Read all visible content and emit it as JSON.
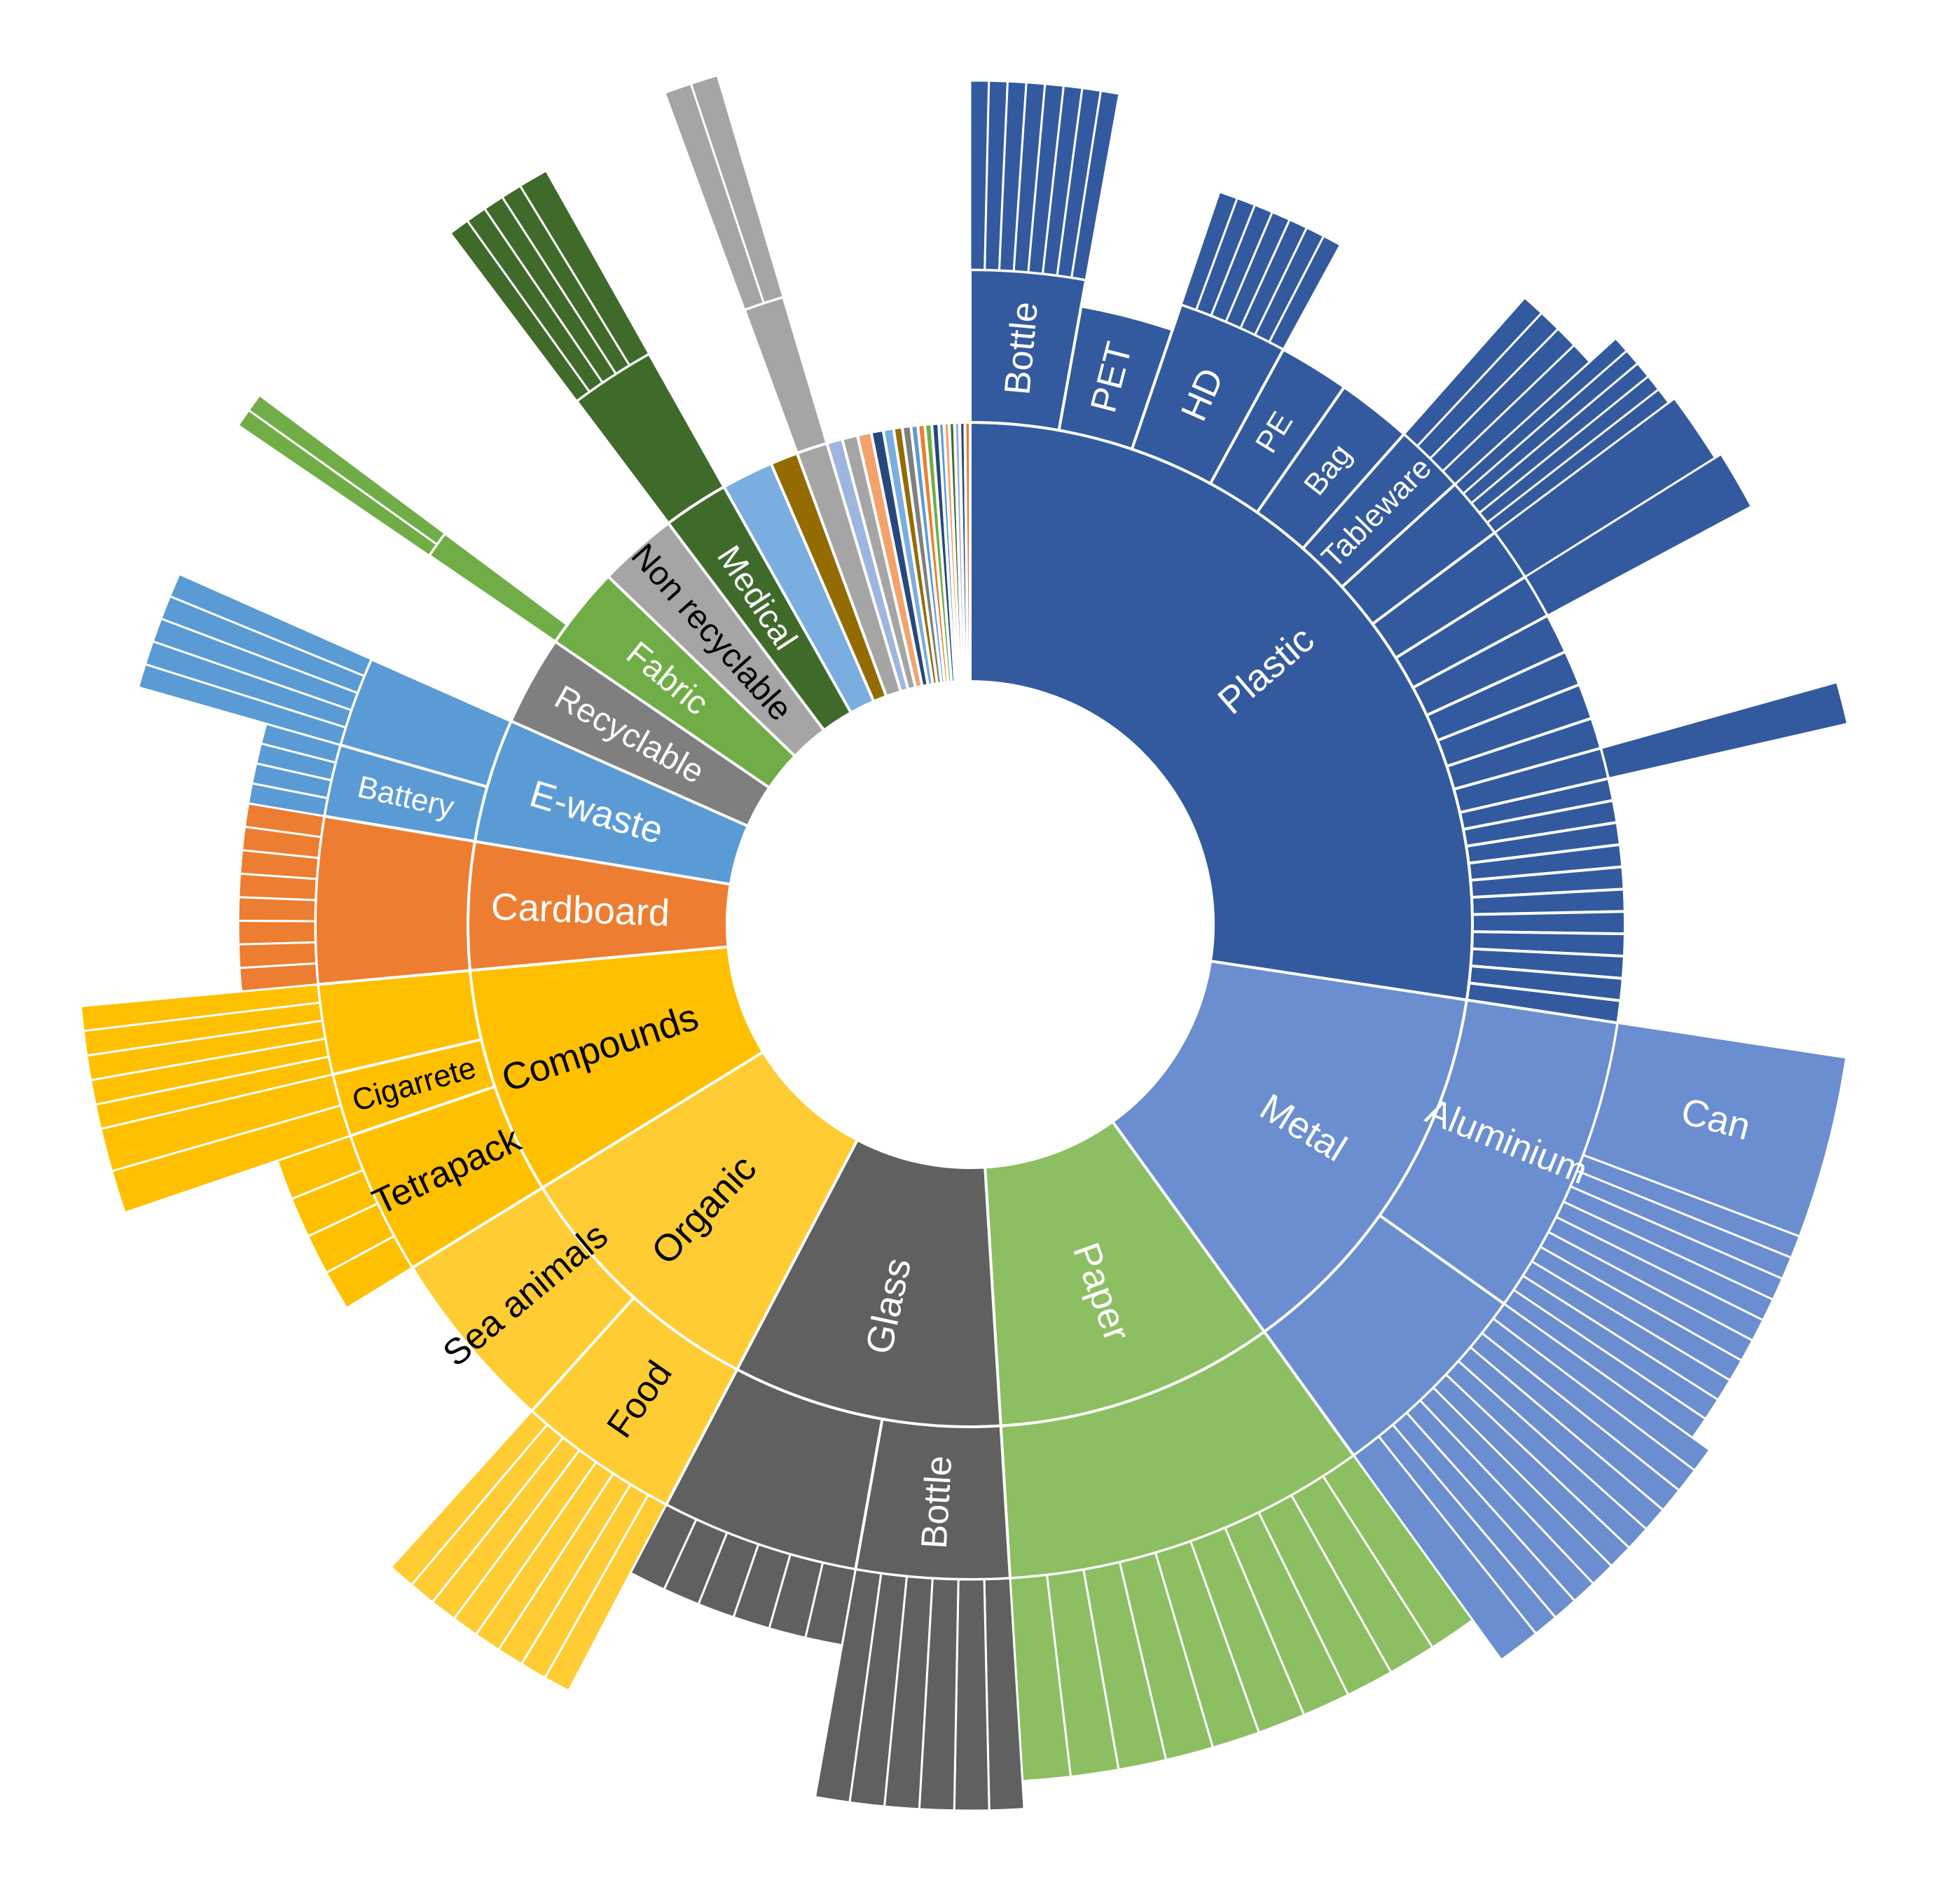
{
  "chart_data": {
    "type": "sunburst",
    "title": "",
    "colors": {
      "plastic": "#335a9e",
      "metal": "#6a8ecf",
      "paper": "#8cbf62",
      "glass": "#606060",
      "organic": "#ffcc33",
      "compounds": "#ffc000",
      "cardboard": "#ed7d31",
      "ewaste": "#5b9bd5",
      "recyclable": "#7f7f7f",
      "fabric": "#70ad47",
      "nonrecyclable": "#a5a5a5",
      "medical": "#3f6a2a",
      "light_blue": "#7aade0",
      "brown": "#946b00",
      "grey_blue": "#9eb6df",
      "peach": "#f4a26b",
      "navy": "#27487c"
    },
    "categories": [
      {
        "name": "Plastic",
        "value": 24.7,
        "color": "plastic",
        "label_color": "#ffffff",
        "children": [
          {
            "name": "Bottle",
            "value": 2.6,
            "label_color": "#ffffff",
            "leaves": [
              1.2,
              1.2,
              1.2,
              1.2,
              1.2,
              1.2,
              1.2,
              1.2
            ],
            "leaf_len": 270
          },
          {
            "name": "PET",
            "value": 2.2,
            "label_color": "#ffffff",
            "height": 180,
            "leaves": [],
            "leaf_len": 0
          },
          {
            "name": "HD",
            "value": 2.5,
            "label_color": "#ffffff",
            "stack_on": "PET",
            "leaves": [
              1.2,
              1.2,
              1.2,
              1.2,
              1.2,
              1.2,
              1.2
            ],
            "leaf_len": 170
          },
          {
            "name": "PE",
            "value": 1.6,
            "label_color": "#ffffff",
            "leaves": [],
            "leaf_len": 0
          },
          {
            "name": "Bag",
            "value": 1.7,
            "label_color": "#ffffff",
            "leaves": [],
            "leaf_len": 0
          },
          {
            "name": "Tableware",
            "value": 1.6,
            "label_color": "#ffffff",
            "leaves": [
              0.4,
              0.4,
              0.4,
              0.4
            ],
            "leaf_len": 260
          },
          {
            "name": "",
            "value": 1.4,
            "leaves": [
              0.4,
              0.4,
              0.4,
              0.4,
              0.4
            ],
            "leaf_len": 310
          },
          {
            "name": "",
            "value": 1.2,
            "leaves": [
              0.6
            ],
            "leaf_len": 320
          },
          {
            "name": "",
            "value": 1.0,
            "leaves": [
              0.6
            ],
            "leaf_len": 330
          },
          {
            "name": "",
            "value": 0.9,
            "leaves": [],
            "leaf_len": 0
          },
          {
            "name": "",
            "value": 0.8,
            "leaves": [],
            "leaf_len": 0
          },
          {
            "name": "",
            "value": 0.8,
            "leaves": [],
            "leaf_len": 0
          },
          {
            "name": "",
            "value": 0.7,
            "leaves": [],
            "leaf_len": 0
          },
          {
            "name": "",
            "value": 0.7,
            "leaves": [
              0.3
            ],
            "leaf_len": 350
          },
          {
            "name": "",
            "value": 0.5,
            "leaves": [],
            "leaf_len": 0
          },
          {
            "name": "",
            "value": 0.5,
            "leaves": [],
            "leaf_len": 0
          },
          {
            "name": "",
            "value": 0.5,
            "leaves": [],
            "leaf_len": 0
          },
          {
            "name": "",
            "value": 0.5,
            "leaves": [],
            "leaf_len": 0
          },
          {
            "name": "",
            "value": 0.5,
            "leaves": [],
            "leaf_len": 0
          },
          {
            "name": "",
            "value": 0.5,
            "leaves": [],
            "leaf_len": 0
          },
          {
            "name": "",
            "value": 0.5,
            "leaves": [],
            "leaf_len": 0
          },
          {
            "name": "",
            "value": 0.5,
            "leaves": [],
            "leaf_len": 0
          },
          {
            "name": "",
            "value": 0.5,
            "leaves": [],
            "leaf_len": 0
          },
          {
            "name": "",
            "value": 0.5,
            "leaves": [],
            "leaf_len": 0
          },
          {
            "name": "",
            "value": 0.5,
            "leaves": [],
            "leaf_len": 0
          }
        ]
      },
      {
        "name": "Metal",
        "value": 11.4,
        "color": "metal",
        "label_color": "#ffffff",
        "children": [
          {
            "name": "Aluminium",
            "value": 6.7,
            "label_color": "#ffffff",
            "leaves": [
              3.4,
              0.42,
              0.42,
              0.42,
              0.42,
              0.42,
              0.42,
              0.42,
              0.42,
              0.42,
              0.42
            ],
            "leaf_len": 330,
            "leaf_names": [
              "Can"
            ]
          },
          {
            "name": "",
            "value": 4.7,
            "leaves": [
              0.35,
              0.35,
              0.35,
              0.35,
              0.35,
              0.35,
              0.35,
              0.35,
              0.35,
              0.35,
              0.6
            ],
            "leaf_len": 360
          }
        ]
      },
      {
        "name": "Paper",
        "value": 8.1,
        "color": "paper",
        "label_color": "#ffffff",
        "children": [
          {
            "name": "",
            "value": 8.1,
            "leaves": [
              0.7,
              0.7,
              0.7,
              0.7,
              0.7,
              0.7,
              0.7,
              0.7,
              0.7,
              0.7
            ],
            "leaf_len": 290
          }
        ]
      },
      {
        "name": "Glass",
        "value": 7.8,
        "color": "glass",
        "label_color": "#ffffff",
        "children": [
          {
            "name": "Bottle",
            "value": 3.4,
            "label_color": "#ffffff",
            "leaves": [
              0.5,
              0.5,
              0.5,
              0.5,
              0.5,
              0.5
            ],
            "leaf_len": 330
          },
          {
            "name": "",
            "value": 4.4,
            "leaves": [
              0.6,
              0.6,
              0.6,
              0.6,
              0.6,
              0.6
            ],
            "leaf_len": 0
          }
        ]
      },
      {
        "name": "Organic",
        "value": 7.7,
        "color": "organic",
        "label_color": "#000000",
        "children": [
          {
            "name": "Food",
            "value": 3.6,
            "label_color": "#000000",
            "leaves": [
              0.45,
              0.45,
              0.45,
              0.45,
              0.45,
              0.45,
              0.45,
              0.45
            ],
            "leaf_len": 300
          },
          {
            "name": "Sea animals",
            "value": 4.1,
            "label_color": "#000000",
            "leaves": [],
            "leaf_len": 0
          }
        ]
      },
      {
        "name": "Compounds",
        "value": 6.6,
        "color": "compounds",
        "label_color": "#000000",
        "children": [
          {
            "name": "Tetrapack",
            "value": 3.2,
            "label_color": "#000000",
            "leaves": [
              0.35,
              0.35,
              0.35,
              0.35
            ],
            "leaf_len": 0
          },
          {
            "name": "Cigarrete",
            "value": 1.4,
            "label_color": "#000000",
            "leaves": [
              0.5,
              0.5
            ],
            "leaf_len": 340
          },
          {
            "name": "",
            "value": 2.0,
            "leaves": [
              0.4,
              0.4,
              0.4,
              0.4,
              0.4
            ],
            "leaf_len": 340
          }
        ]
      },
      {
        "name": "Cardboard",
        "value": 3.7,
        "color": "cardboard",
        "label_color": "#ffffff",
        "children": [
          {
            "name": "",
            "value": 3.7,
            "leaves": [
              0.45,
              0.45,
              0.45,
              0.45,
              0.45,
              0.45,
              0.45,
              0.45
            ],
            "leaf_len": 0
          }
        ]
      },
      {
        "name": "E-waste",
        "value": 3.6,
        "color": "ewaste",
        "label_color": "#ffffff",
        "children": [
          {
            "name": "Battery",
            "value": 1.6,
            "label_color": "#ffffff",
            "leaves": [
              0.4,
              0.4,
              0.4,
              0.4
            ],
            "leaf_len": 0
          },
          {
            "name": "",
            "value": 2.0,
            "leaves": [
              0.4,
              0.4,
              0.4,
              0.4,
              0.4
            ],
            "leaf_len": 300
          }
        ]
      },
      {
        "name": "Recyclable",
        "value": 2.6,
        "color": "recyclable",
        "label_color": "#ffffff",
        "children": []
      },
      {
        "name": "Fabric",
        "value": 2.4,
        "color": "fabric",
        "label_color": "#ffffff",
        "children": [
          {
            "name": "",
            "value": 0.6,
            "leaves": [
              0.2,
              0.2
            ],
            "leaf_len": 330
          }
        ]
      },
      {
        "name": "Non recyclable",
        "value": 2.3,
        "color": "nonrecyclable",
        "label_color": "#000000",
        "children": []
      },
      {
        "name": "Medical",
        "value": 1.9,
        "color": "medical",
        "label_color": "#ffffff",
        "children": [
          {
            "name": "",
            "value": 1.9,
            "leaves": [
              0.35,
              0.35,
              0.35,
              0.35,
              0.5
            ],
            "leaf_len": 300
          }
        ]
      },
      {
        "name": "",
        "value": 1.5,
        "color": "light_blue",
        "children": []
      },
      {
        "name": "",
        "value": 0.8,
        "color": "brown",
        "children": []
      },
      {
        "name": "",
        "value": 0.9,
        "color": "nonrecyclable",
        "children": [
          {
            "name": "",
            "value": 0.9,
            "leaves": [
              0.3,
              0.3
            ],
            "leaf_len": 330
          }
        ]
      },
      {
        "name": "",
        "value": 0.45,
        "color": "grey_blue",
        "children": []
      },
      {
        "name": "",
        "value": 0.45,
        "color": "nonrecyclable",
        "children": []
      },
      {
        "name": "",
        "value": 0.4,
        "color": "peach",
        "children": []
      },
      {
        "name": "",
        "value": 0.35,
        "color": "navy",
        "children": []
      },
      {
        "name": "",
        "value": 0.3,
        "color": "light_blue",
        "children": []
      },
      {
        "name": "",
        "value": 0.25,
        "color": "brown",
        "children": []
      },
      {
        "name": "",
        "value": 0.25,
        "color": "recyclable",
        "children": []
      },
      {
        "name": "",
        "value": 0.2,
        "color": "ewaste",
        "children": []
      },
      {
        "name": "",
        "value": 0.2,
        "color": "cardboard",
        "children": []
      },
      {
        "name": "",
        "value": 0.2,
        "color": "fabric",
        "children": []
      },
      {
        "name": "",
        "value": 0.2,
        "color": "navy",
        "children": []
      },
      {
        "name": "",
        "value": 0.15,
        "color": "ewaste",
        "children": []
      },
      {
        "name": "",
        "value": 0.15,
        "color": "peach",
        "children": []
      },
      {
        "name": "",
        "value": 0.15,
        "color": "medical",
        "children": []
      },
      {
        "name": "",
        "value": 0.15,
        "color": "grey_blue",
        "children": []
      },
      {
        "name": "",
        "value": 0.15,
        "color": "navy",
        "children": []
      },
      {
        "name": "",
        "value": 0.15,
        "color": "cardboard",
        "children": []
      }
    ]
  }
}
